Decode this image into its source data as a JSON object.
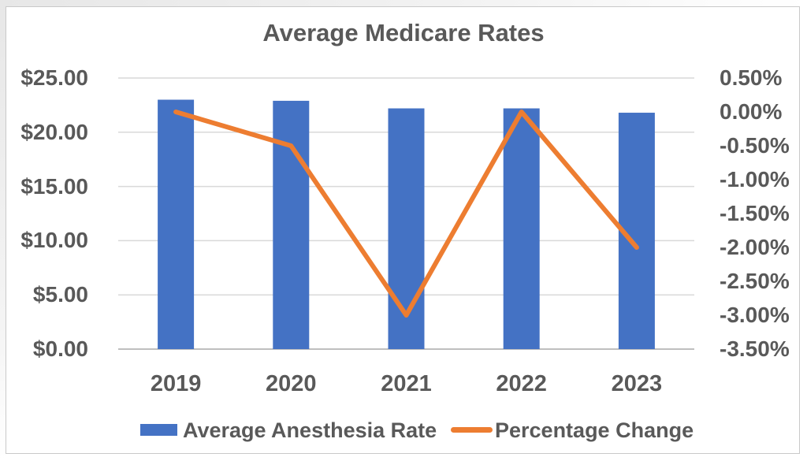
{
  "chart_data": {
    "type": "bar+line combo",
    "title": "Average Medicare Rates",
    "categories": [
      "2019",
      "2020",
      "2021",
      "2022",
      "2023"
    ],
    "series": [
      {
        "name": "Average Anesthesia Rate",
        "type": "bar",
        "axis": "left",
        "color": "#4472C4",
        "values": [
          23.0,
          22.9,
          22.2,
          22.2,
          21.8
        ]
      },
      {
        "name": "Percentage Change",
        "type": "line",
        "axis": "right",
        "color": "#ED7D31",
        "values": [
          0.0,
          -0.5,
          -3.0,
          0.0,
          -2.0
        ]
      }
    ],
    "left_axis": {
      "min": 0,
      "max": 25,
      "step": 5,
      "ticks": [
        "$25.00",
        "$20.00",
        "$15.00",
        "$10.00",
        "$5.00",
        "$0.00"
      ]
    },
    "right_axis": {
      "min": -3.5,
      "max": 0.5,
      "step": 0.5,
      "ticks": [
        "0.50%",
        "0.00%",
        "-0.50%",
        "-1.00%",
        "-1.50%",
        "-2.00%",
        "-2.50%",
        "-3.00%",
        "-3.50%"
      ]
    },
    "grid": "horizontal",
    "legend_position": "bottom"
  },
  "colors": {
    "bar_fill": "#4472C4",
    "line_stroke": "#ED7D31",
    "text": "#595959",
    "gridline": "#d9d9d9",
    "axis_line": "#bfbfbf",
    "frame_border": "#c9c9c9",
    "background": "#ffffff"
  }
}
